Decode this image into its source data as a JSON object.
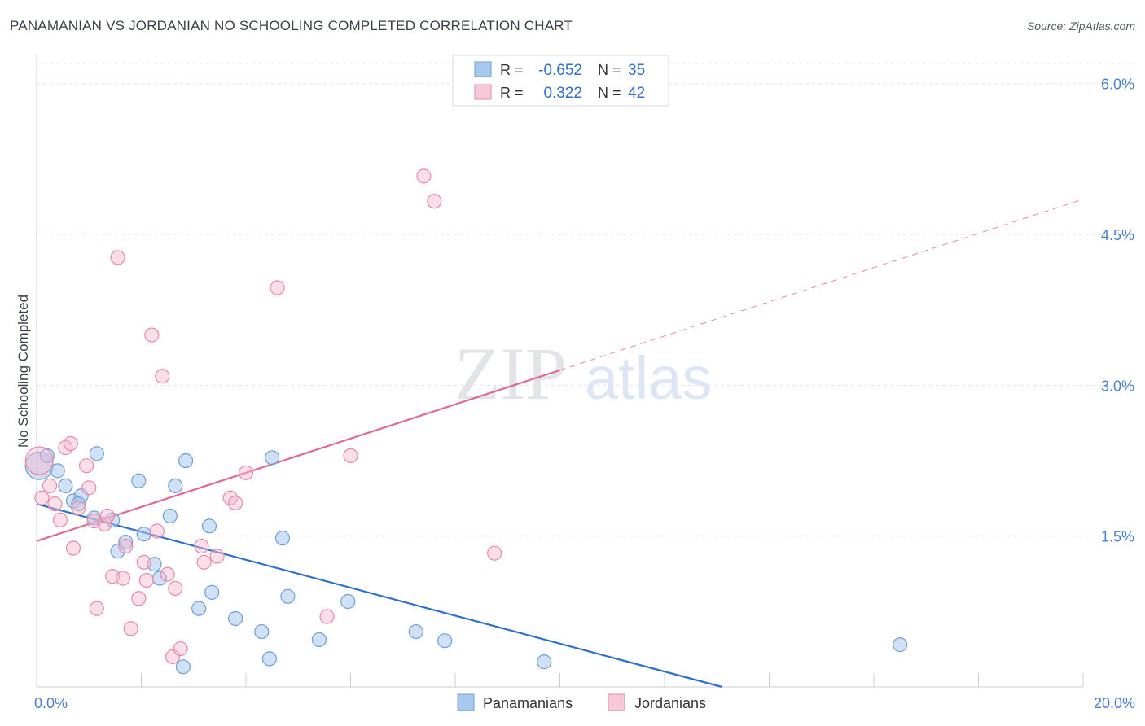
{
  "header": {
    "title": "PANAMANIAN VS JORDANIAN NO SCHOOLING COMPLETED CORRELATION CHART",
    "source": "Source: ZipAtlas.com"
  },
  "watermark": {
    "zip": "ZIP",
    "atlas": "atlas"
  },
  "colors": {
    "blue_fill": "#a9c8ee",
    "blue_stroke": "#6d9fd8",
    "blue_line": "#2f6fcf",
    "pink_fill": "#f6b8cb",
    "pink_stroke": "#e889a8",
    "pink_line": "#e06a92",
    "tick_label": "#4a80cc",
    "grid": "#dfe3ea"
  },
  "legend_top": {
    "rows": [
      {
        "r_label": "R =",
        "r_value": "-0.652",
        "n_label": "N =",
        "n_value": "35"
      },
      {
        "r_label": "R =",
        "r_value": "0.322",
        "n_label": "N =",
        "n_value": "42"
      }
    ]
  },
  "chart_data": {
    "type": "scatter",
    "title": "PANAMANIAN VS JORDANIAN NO SCHOOLING COMPLETED CORRELATION CHART",
    "xlabel": "",
    "ylabel": "No Schooling Completed",
    "xlim": [
      0,
      20
    ],
    "ylim": [
      0,
      6.2
    ],
    "x_tick_labels": {
      "left": "0.0%",
      "right": "20.0%"
    },
    "y_ticks": [
      {
        "value": 1.5,
        "label": "1.5%"
      },
      {
        "value": 3.0,
        "label": "3.0%"
      },
      {
        "value": 4.5,
        "label": "4.5%"
      },
      {
        "value": 6.0,
        "label": "6.0%"
      }
    ],
    "series": [
      {
        "name": "Panamanians",
        "color": "blue",
        "r": -0.652,
        "n": 35,
        "points": [
          {
            "x": 0.05,
            "y": 2.2,
            "big": true
          },
          {
            "x": 0.2,
            "y": 2.3
          },
          {
            "x": 0.4,
            "y": 2.15
          },
          {
            "x": 0.55,
            "y": 2.0
          },
          {
            "x": 0.7,
            "y": 1.85
          },
          {
            "x": 0.85,
            "y": 1.9
          },
          {
            "x": 0.8,
            "y": 1.82
          },
          {
            "x": 1.15,
            "y": 2.32
          },
          {
            "x": 1.1,
            "y": 1.68
          },
          {
            "x": 1.45,
            "y": 1.66
          },
          {
            "x": 1.55,
            "y": 1.35
          },
          {
            "x": 1.7,
            "y": 1.44
          },
          {
            "x": 1.95,
            "y": 2.05
          },
          {
            "x": 2.05,
            "y": 1.52
          },
          {
            "x": 2.25,
            "y": 1.22
          },
          {
            "x": 2.35,
            "y": 1.08
          },
          {
            "x": 2.55,
            "y": 1.7
          },
          {
            "x": 2.65,
            "y": 2.0
          },
          {
            "x": 2.85,
            "y": 2.25
          },
          {
            "x": 3.1,
            "y": 0.78
          },
          {
            "x": 3.3,
            "y": 1.6
          },
          {
            "x": 3.35,
            "y": 0.94
          },
          {
            "x": 3.8,
            "y": 0.68
          },
          {
            "x": 4.3,
            "y": 0.55
          },
          {
            "x": 4.45,
            "y": 0.28
          },
          {
            "x": 4.5,
            "y": 2.28
          },
          {
            "x": 4.7,
            "y": 1.48
          },
          {
            "x": 4.8,
            "y": 0.9
          },
          {
            "x": 5.4,
            "y": 0.47
          },
          {
            "x": 5.95,
            "y": 0.85
          },
          {
            "x": 7.25,
            "y": 0.55
          },
          {
            "x": 7.8,
            "y": 0.46
          },
          {
            "x": 9.7,
            "y": 0.25
          },
          {
            "x": 16.5,
            "y": 0.42
          },
          {
            "x": 2.8,
            "y": 0.2
          }
        ],
        "trend": {
          "x1": 0,
          "y1": 1.82,
          "x2": 13.1,
          "y2": 0.0,
          "dashed_to": null
        }
      },
      {
        "name": "Jordanians",
        "color": "pink",
        "r": 0.322,
        "n": 42,
        "points": [
          {
            "x": 0.05,
            "y": 2.25,
            "big": true
          },
          {
            "x": 0.1,
            "y": 1.88
          },
          {
            "x": 0.25,
            "y": 2.0
          },
          {
            "x": 0.35,
            "y": 1.82
          },
          {
            "x": 0.45,
            "y": 1.66
          },
          {
            "x": 0.55,
            "y": 2.38
          },
          {
            "x": 0.65,
            "y": 2.42
          },
          {
            "x": 0.7,
            "y": 1.38
          },
          {
            "x": 0.8,
            "y": 1.78
          },
          {
            "x": 0.95,
            "y": 2.2
          },
          {
            "x": 1.0,
            "y": 1.98
          },
          {
            "x": 1.1,
            "y": 1.65
          },
          {
            "x": 1.15,
            "y": 0.78
          },
          {
            "x": 1.3,
            "y": 1.62
          },
          {
            "x": 1.35,
            "y": 1.7
          },
          {
            "x": 1.45,
            "y": 1.1
          },
          {
            "x": 1.55,
            "y": 4.27
          },
          {
            "x": 1.65,
            "y": 1.08
          },
          {
            "x": 1.7,
            "y": 1.4
          },
          {
            "x": 1.8,
            "y": 0.58
          },
          {
            "x": 1.95,
            "y": 0.88
          },
          {
            "x": 2.05,
            "y": 1.24
          },
          {
            "x": 2.1,
            "y": 1.06
          },
          {
            "x": 2.2,
            "y": 3.5
          },
          {
            "x": 2.3,
            "y": 1.55
          },
          {
            "x": 2.4,
            "y": 3.09
          },
          {
            "x": 2.5,
            "y": 1.12
          },
          {
            "x": 2.6,
            "y": 0.3
          },
          {
            "x": 2.65,
            "y": 0.98
          },
          {
            "x": 2.75,
            "y": 0.38
          },
          {
            "x": 3.15,
            "y": 1.4
          },
          {
            "x": 3.2,
            "y": 1.24
          },
          {
            "x": 3.45,
            "y": 1.3
          },
          {
            "x": 3.7,
            "y": 1.88
          },
          {
            "x": 3.8,
            "y": 1.83
          },
          {
            "x": 4.0,
            "y": 2.13
          },
          {
            "x": 4.6,
            "y": 3.97
          },
          {
            "x": 5.55,
            "y": 0.7
          },
          {
            "x": 6.0,
            "y": 2.3
          },
          {
            "x": 7.4,
            "y": 5.08
          },
          {
            "x": 7.6,
            "y": 4.83
          },
          {
            "x": 8.75,
            "y": 1.33
          }
        ],
        "trend": {
          "x1": 0,
          "y1": 1.45,
          "x2": 10.0,
          "y2": 3.15,
          "dashed_to": {
            "x": 20.0,
            "y": 4.85
          }
        }
      }
    ],
    "legend_bottom": [
      "Panamanians",
      "Jordanians"
    ],
    "grid": true
  }
}
